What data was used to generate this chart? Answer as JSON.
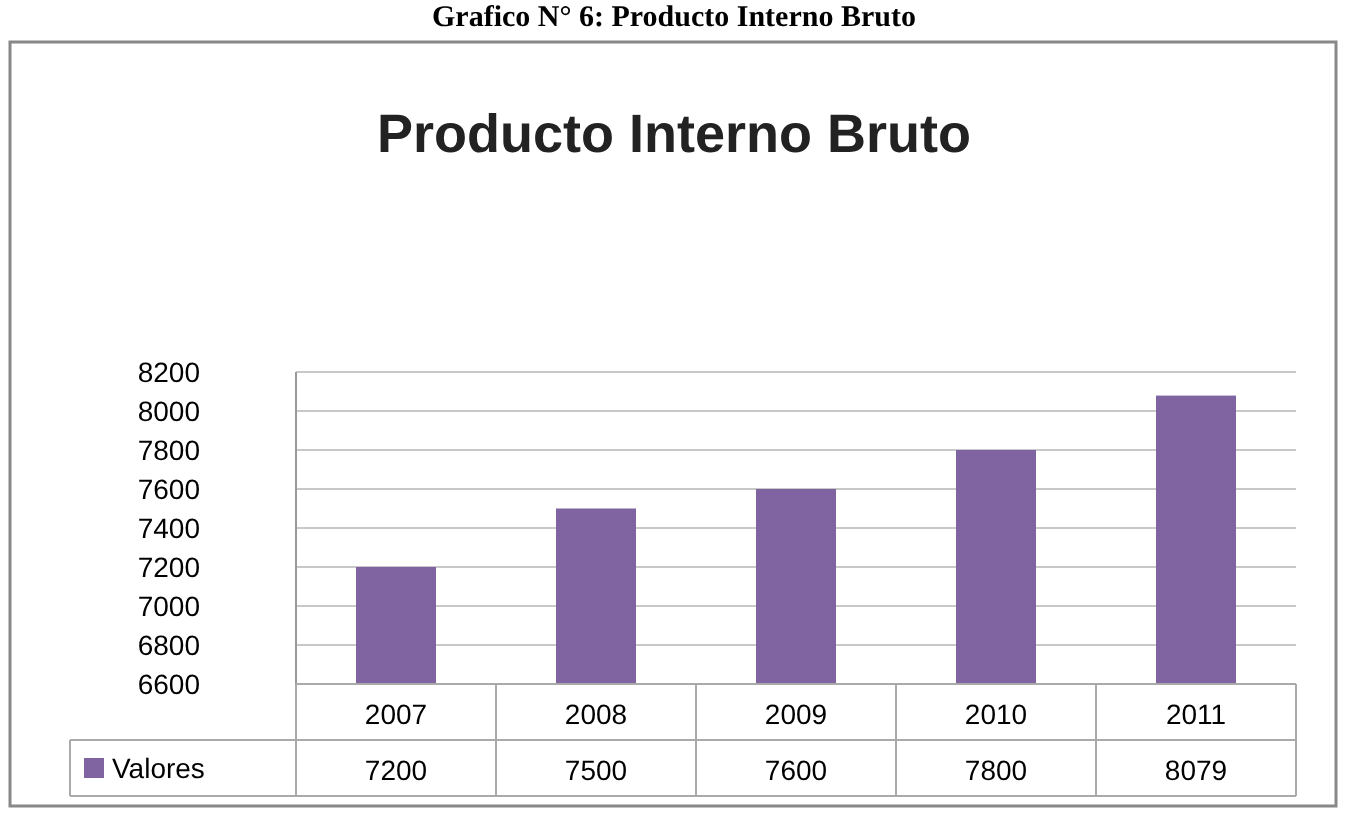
{
  "chart_data": {
    "type": "bar",
    "title": "Producto Interno Bruto",
    "annotations": [
      "Grafico N° 6: Producto Interno Bruto"
    ],
    "categories": [
      "2007",
      "2008",
      "2009",
      "2010",
      "2011"
    ],
    "series": [
      {
        "name": "Valores",
        "color": "#8064a2",
        "values": [
          7200,
          7500,
          7600,
          7800,
          8079
        ]
      }
    ],
    "ylim": [
      6600,
      8200
    ],
    "yticks": [
      6600,
      6800,
      7000,
      7200,
      7400,
      7600,
      7800,
      8000,
      8200
    ],
    "grid": "y",
    "legend": "bottom",
    "data_labels": true
  }
}
